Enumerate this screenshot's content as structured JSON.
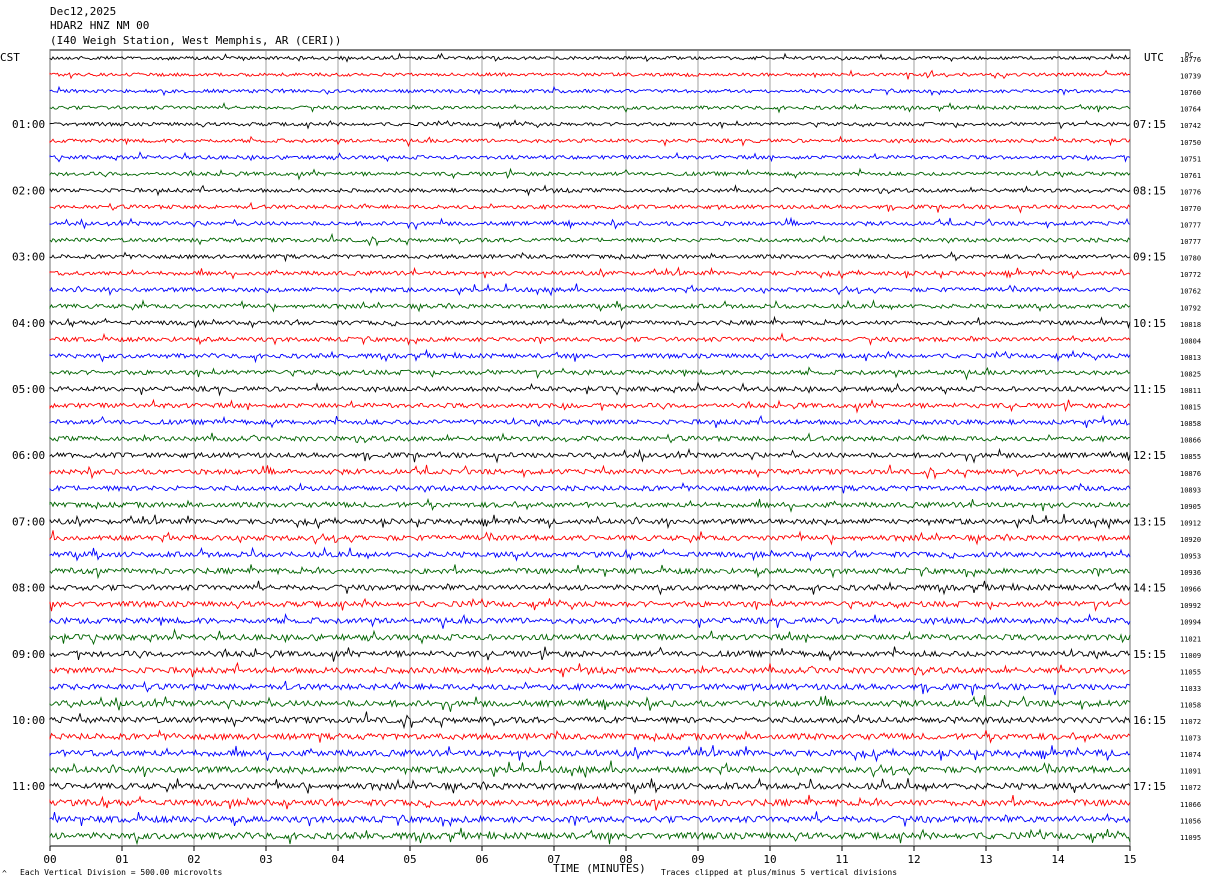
{
  "header": {
    "date": "Dec12,2025",
    "station": "HDAR2 HNZ NM 00",
    "location": "(I40 Weigh Station, West Memphis, AR (CERI))"
  },
  "labels": {
    "left_tz": "CST",
    "right_tz": "UTC",
    "dc": "DC"
  },
  "footer": {
    "scale": "Each Vertical Division =  500.00 microvolts",
    "clip": "Traces clipped at plus/minus 5 vertical divisions",
    "corner_mark": "^"
  },
  "chart_data": {
    "type": "line",
    "title": "",
    "xlabel": "TIME (MINUTES)",
    "xlim": [
      0,
      15
    ],
    "x_ticks": [
      "00",
      "01",
      "02",
      "03",
      "04",
      "05",
      "06",
      "07",
      "08",
      "09",
      "10",
      "11",
      "12",
      "13",
      "14",
      "15"
    ],
    "rows": 48,
    "row_duration_minutes": 15,
    "trace_colors": [
      "#000000",
      "#ff0000",
      "#0000ff",
      "#006400"
    ],
    "left_hour_labels": [
      "01:00",
      "02:00",
      "03:00",
      "04:00",
      "05:00",
      "06:00",
      "07:00",
      "08:00",
      "09:00",
      "10:00",
      "11:00"
    ],
    "right_hour_labels": [
      "07:15",
      "08:15",
      "09:15",
      "10:15",
      "11:15",
      "12:15",
      "13:15",
      "14:15",
      "15:15",
      "16:15",
      "17:15"
    ],
    "dc_offsets": [
      "10776",
      "10739",
      "10760",
      "10764",
      "10742",
      "10750",
      "10751",
      "10761",
      "10776",
      "10770",
      "10777",
      "10777",
      "10780",
      "10772",
      "10762",
      "10792",
      "10818",
      "10804",
      "10813",
      "10825",
      "10811",
      "10815",
      "10858",
      "10866",
      "10855",
      "10876",
      "10893",
      "10905",
      "10912",
      "10920",
      "10953",
      "10936",
      "10966",
      "10992",
      "10994",
      "11021",
      "11009",
      "11055",
      "11033",
      "11058",
      "11072",
      "11073",
      "11074",
      "11091",
      "11072",
      "11066",
      "11056",
      "11095"
    ]
  }
}
